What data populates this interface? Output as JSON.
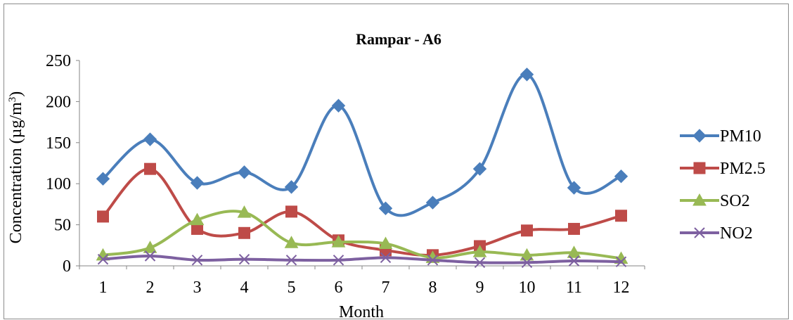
{
  "chart_data": {
    "type": "line",
    "title": "Rampar - A6",
    "xlabel": "Month",
    "ylabel": "Concentration (µg/m³)",
    "ylabel_main": "Concentration (µg/m",
    "ylabel_sup": "3",
    "ylabel_close": ")",
    "categories": [
      "1",
      "2",
      "3",
      "4",
      "5",
      "6",
      "7",
      "8",
      "9",
      "10",
      "11",
      "12"
    ],
    "yticks": [
      "0",
      "50",
      "100",
      "150",
      "200",
      "250"
    ],
    "ylim": [
      0,
      250
    ],
    "grid": false,
    "legend_position": "right",
    "series": [
      {
        "name": "PM10",
        "color": "#4a7ebb",
        "marker": "diamond",
        "values": [
          106,
          154,
          101,
          114,
          96,
          195,
          70,
          77,
          118,
          233,
          95,
          109
        ]
      },
      {
        "name": "PM2.5",
        "color": "#be4b48",
        "marker": "square",
        "values": [
          60,
          118,
          45,
          40,
          66,
          31,
          19,
          13,
          24,
          43,
          45,
          61
        ]
      },
      {
        "name": "SO2",
        "color": "#98b954",
        "marker": "triangle",
        "values": [
          13,
          22,
          56,
          65,
          28,
          29,
          27,
          10,
          17,
          13,
          16,
          9
        ]
      },
      {
        "name": "NO2",
        "color": "#7d60a0",
        "marker": "x",
        "values": [
          8,
          12,
          7,
          8,
          7,
          7,
          10,
          7,
          4,
          4,
          6,
          5
        ]
      }
    ]
  }
}
